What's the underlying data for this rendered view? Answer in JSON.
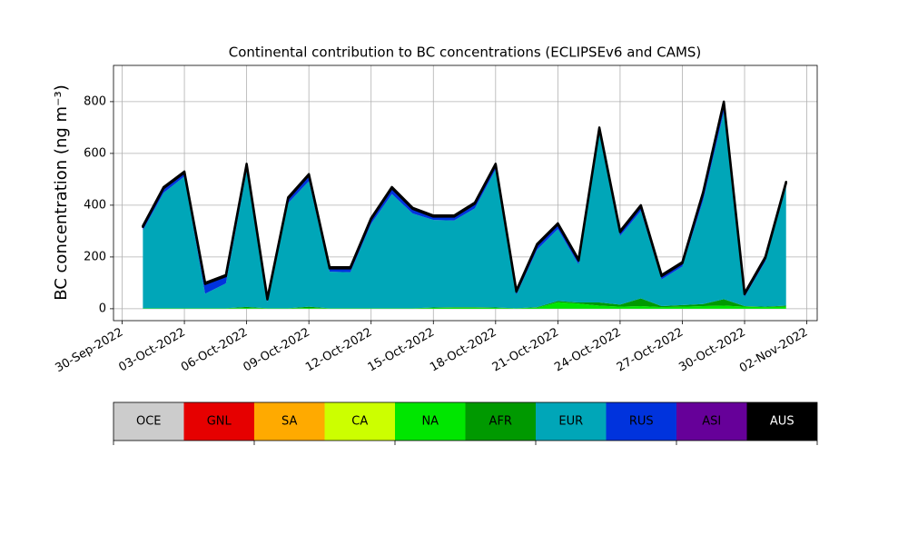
{
  "chart_data": {
    "type": "stacked_area",
    "title": "Continental contribution to BC concentrations (ECLIPSEv6 and CAMS)",
    "y_label": "BC concentration (ng m⁻³)",
    "x": [
      "2022-10-01",
      "2022-10-02",
      "2022-10-03",
      "2022-10-04",
      "2022-10-05",
      "2022-10-06",
      "2022-10-07",
      "2022-10-08",
      "2022-10-09",
      "2022-10-10",
      "2022-10-11",
      "2022-10-12",
      "2022-10-13",
      "2022-10-14",
      "2022-10-15",
      "2022-10-16",
      "2022-10-17",
      "2022-10-18",
      "2022-10-19",
      "2022-10-20",
      "2022-10-21",
      "2022-10-22",
      "2022-10-23",
      "2022-10-24",
      "2022-10-25",
      "2022-10-26",
      "2022-10-27",
      "2022-10-28",
      "2022-10-29",
      "2022-10-30",
      "2022-10-31",
      "2022-11-01"
    ],
    "series": [
      {
        "name": "OCE",
        "color": "#cccccc",
        "values": [
          0,
          0,
          0,
          0,
          0,
          0,
          0,
          0,
          0,
          0,
          0,
          0,
          0,
          0,
          0,
          0,
          0,
          0,
          0,
          0,
          0,
          0,
          0,
          0,
          0,
          0,
          0,
          0,
          0,
          0,
          0,
          0
        ]
      },
      {
        "name": "GNL",
        "color": "#e60000",
        "values": [
          0,
          0,
          0,
          0,
          0,
          0,
          0,
          0,
          0,
          0,
          0,
          0,
          0,
          0,
          0,
          0,
          0,
          0,
          0,
          0,
          0,
          0,
          0,
          0,
          0,
          0,
          0,
          0,
          0,
          0,
          0,
          0
        ]
      },
      {
        "name": "SA",
        "color": "#ffaa00",
        "values": [
          0,
          0,
          0,
          0,
          0,
          0,
          0,
          0,
          0,
          0,
          0,
          0,
          0,
          0,
          0,
          0,
          0,
          0,
          0,
          0,
          0,
          0,
          0,
          0,
          0,
          0,
          0,
          0,
          0,
          0,
          0,
          0
        ]
      },
      {
        "name": "CA",
        "color": "#ccff00",
        "values": [
          0,
          0,
          0,
          0,
          0,
          0,
          0,
          0,
          0,
          0,
          0,
          0,
          0,
          0,
          0,
          0,
          0,
          0,
          0,
          0,
          0,
          0,
          0,
          0,
          0,
          0,
          0,
          0,
          0,
          0,
          0,
          0
        ]
      },
      {
        "name": "NA",
        "color": "#00e600",
        "values": [
          2,
          2,
          2,
          2,
          2,
          3,
          2,
          2,
          3,
          2,
          2,
          2,
          2,
          2,
          3,
          4,
          4,
          3,
          2,
          4,
          25,
          20,
          12,
          8,
          10,
          6,
          8,
          10,
          12,
          8,
          6,
          8
        ]
      },
      {
        "name": "AFR",
        "color": "#009900",
        "values": [
          0,
          0,
          0,
          0,
          0,
          4,
          0,
          0,
          5,
          0,
          0,
          0,
          0,
          0,
          2,
          2,
          2,
          2,
          0,
          2,
          5,
          4,
          12,
          8,
          30,
          4,
          6,
          8,
          25,
          2,
          2,
          4
        ]
      },
      {
        "name": "EUR",
        "color": "#00a6b8",
        "values": [
          301,
          446,
          509,
          56,
          96,
          526,
          24,
          406,
          485,
          141,
          139,
          326,
          441,
          366,
          338,
          335,
          382,
          533,
          52,
          222,
          278,
          147,
          654,
          265,
          338,
          103,
          149,
          400,
          724,
          36,
          175,
          459
        ]
      },
      {
        "name": "RUS",
        "color": "#0033dd",
        "values": [
          10,
          15,
          12,
          35,
          25,
          20,
          8,
          15,
          20,
          10,
          12,
          15,
          20,
          15,
          10,
          12,
          15,
          15,
          10,
          15,
          15,
          12,
          15,
          12,
          15,
          10,
          10,
          25,
          30,
          8,
          10,
          12
        ]
      },
      {
        "name": "ASI",
        "color": "#660099",
        "values": [
          3,
          3,
          3,
          3,
          3,
          3,
          2,
          3,
          3,
          3,
          3,
          3,
          3,
          3,
          3,
          3,
          3,
          3,
          2,
          3,
          3,
          3,
          3,
          3,
          3,
          3,
          3,
          3,
          5,
          2,
          3,
          3
        ]
      },
      {
        "name": "AUS",
        "color": "#000000",
        "values": [
          4,
          4,
          4,
          4,
          4,
          4,
          4,
          4,
          4,
          4,
          4,
          4,
          4,
          4,
          4,
          4,
          4,
          4,
          4,
          4,
          4,
          4,
          4,
          4,
          4,
          4,
          4,
          4,
          4,
          4,
          4,
          4
        ]
      }
    ],
    "xlim": [
      "2022-09-29T14:00",
      "2022-11-02T12:00"
    ],
    "xticks": [
      {
        "value": "2022-09-30",
        "label": "30-Sep-2022"
      },
      {
        "value": "2022-10-03",
        "label": "03-Oct-2022"
      },
      {
        "value": "2022-10-06",
        "label": "06-Oct-2022"
      },
      {
        "value": "2022-10-09",
        "label": "09-Oct-2022"
      },
      {
        "value": "2022-10-12",
        "label": "12-Oct-2022"
      },
      {
        "value": "2022-10-15",
        "label": "15-Oct-2022"
      },
      {
        "value": "2022-10-18",
        "label": "18-Oct-2022"
      },
      {
        "value": "2022-10-21",
        "label": "21-Oct-2022"
      },
      {
        "value": "2022-10-24",
        "label": "24-Oct-2022"
      },
      {
        "value": "2022-10-27",
        "label": "27-Oct-2022"
      },
      {
        "value": "2022-10-30",
        "label": "30-Oct-2022"
      },
      {
        "value": "2022-11-02",
        "label": "02-Nov-2022"
      }
    ],
    "ylim": [
      -46,
      940
    ],
    "yticks": [
      0,
      200,
      400,
      600,
      800
    ],
    "grid": true
  }
}
